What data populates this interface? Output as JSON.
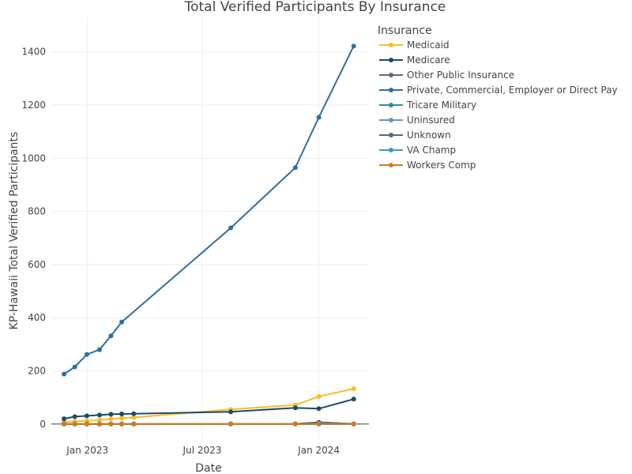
{
  "chart_data": {
    "type": "line",
    "title": "Total Verified Participants By Insurance",
    "xlabel": "Date",
    "ylabel": "KP-Hawaii Total Verified Participants",
    "x_ticks": [
      {
        "date": "2023-01-01",
        "label": "Jan 2023"
      },
      {
        "date": "2023-07-01",
        "label": "Jul 2023"
      },
      {
        "date": "2024-01-01",
        "label": "Jan 2024"
      }
    ],
    "y_ticks": [
      0,
      200,
      400,
      600,
      800,
      1000,
      1200,
      1400
    ],
    "xlim": [
      "2022-11-05",
      "2024-03-20"
    ],
    "ylim": [
      -60,
      1530
    ],
    "grid": true,
    "legend": {
      "title": "Insurance",
      "placement": "right"
    },
    "series": [
      {
        "name": "Medicaid",
        "color": "#fbbc22",
        "points": [
          {
            "date": "2022-11-25",
            "value": 8
          },
          {
            "date": "2022-12-12",
            "value": 10
          },
          {
            "date": "2022-12-31",
            "value": 12
          },
          {
            "date": "2023-01-20",
            "value": 15
          },
          {
            "date": "2023-02-07",
            "value": 20
          },
          {
            "date": "2023-02-24",
            "value": 22
          },
          {
            "date": "2023-03-15",
            "value": 25
          },
          {
            "date": "2023-08-15",
            "value": 55
          },
          {
            "date": "2023-11-25",
            "value": 72
          },
          {
            "date": "2024-01-01",
            "value": 104
          },
          {
            "date": "2024-02-25",
            "value": 133
          }
        ]
      },
      {
        "name": "Medicare",
        "color": "#1b4a6b",
        "points": [
          {
            "date": "2022-11-25",
            "value": 20
          },
          {
            "date": "2022-12-12",
            "value": 28
          },
          {
            "date": "2022-12-31",
            "value": 31
          },
          {
            "date": "2023-01-20",
            "value": 34
          },
          {
            "date": "2023-02-07",
            "value": 37
          },
          {
            "date": "2023-02-24",
            "value": 38
          },
          {
            "date": "2023-03-15",
            "value": 39
          },
          {
            "date": "2023-08-15",
            "value": 46
          },
          {
            "date": "2023-11-25",
            "value": 61
          },
          {
            "date": "2024-01-01",
            "value": 58
          },
          {
            "date": "2024-02-25",
            "value": 94
          }
        ]
      },
      {
        "name": "Other Public Insurance",
        "color": "#606a74",
        "points": [
          {
            "date": "2022-11-25",
            "value": 1
          },
          {
            "date": "2022-12-12",
            "value": 1
          },
          {
            "date": "2022-12-31",
            "value": 1
          },
          {
            "date": "2023-01-20",
            "value": 1
          },
          {
            "date": "2023-02-07",
            "value": 1
          },
          {
            "date": "2023-02-24",
            "value": 1
          },
          {
            "date": "2023-03-15",
            "value": 1
          },
          {
            "date": "2023-08-15",
            "value": 1
          },
          {
            "date": "2023-11-25",
            "value": 1
          },
          {
            "date": "2024-01-01",
            "value": 1
          },
          {
            "date": "2024-02-25",
            "value": 1
          }
        ]
      },
      {
        "name": "Private, Commercial, Employer or Direct Pay",
        "color": "#2d6f9e",
        "points": [
          {
            "date": "2022-11-25",
            "value": 188
          },
          {
            "date": "2022-12-12",
            "value": 215
          },
          {
            "date": "2022-12-31",
            "value": 262
          },
          {
            "date": "2023-01-20",
            "value": 280
          },
          {
            "date": "2023-02-07",
            "value": 332
          },
          {
            "date": "2023-02-24",
            "value": 384
          },
          {
            "date": "2023-08-15",
            "value": 738
          },
          {
            "date": "2023-11-25",
            "value": 965
          },
          {
            "date": "2024-01-01",
            "value": 1154
          },
          {
            "date": "2024-02-25",
            "value": 1422
          }
        ]
      },
      {
        "name": "Tricare Military",
        "color": "#2e8ba3",
        "points": [
          {
            "date": "2022-11-25",
            "value": 0
          },
          {
            "date": "2022-12-12",
            "value": 0
          },
          {
            "date": "2022-12-31",
            "value": 0
          },
          {
            "date": "2023-01-20",
            "value": 0
          },
          {
            "date": "2023-02-07",
            "value": 0
          },
          {
            "date": "2023-02-24",
            "value": 0
          },
          {
            "date": "2023-03-15",
            "value": 0
          },
          {
            "date": "2023-08-15",
            "value": 0
          },
          {
            "date": "2023-11-25",
            "value": 0
          },
          {
            "date": "2024-01-01",
            "value": 0
          },
          {
            "date": "2024-02-25",
            "value": 0
          }
        ]
      },
      {
        "name": "Uninsured",
        "color": "#6b93bd",
        "points": [
          {
            "date": "2022-11-25",
            "value": 1
          },
          {
            "date": "2022-12-12",
            "value": 1
          },
          {
            "date": "2022-12-31",
            "value": 1
          },
          {
            "date": "2023-01-20",
            "value": 1
          },
          {
            "date": "2023-02-07",
            "value": 1
          },
          {
            "date": "2023-02-24",
            "value": 1
          },
          {
            "date": "2023-03-15",
            "value": 1
          },
          {
            "date": "2023-08-15",
            "value": 1
          },
          {
            "date": "2023-11-25",
            "value": 1
          },
          {
            "date": "2024-01-01",
            "value": 1
          },
          {
            "date": "2024-02-25",
            "value": 1
          }
        ]
      },
      {
        "name": "Unknown",
        "color": "#4d6a86",
        "points": [
          {
            "date": "2022-11-25",
            "value": 0
          },
          {
            "date": "2022-12-12",
            "value": 0
          },
          {
            "date": "2022-12-31",
            "value": 0
          },
          {
            "date": "2023-01-20",
            "value": 0
          },
          {
            "date": "2023-02-07",
            "value": 0
          },
          {
            "date": "2023-02-24",
            "value": 0
          },
          {
            "date": "2023-03-15",
            "value": 0
          },
          {
            "date": "2023-08-15",
            "value": 1
          },
          {
            "date": "2023-11-25",
            "value": 1
          },
          {
            "date": "2024-01-01",
            "value": 7
          },
          {
            "date": "2024-02-25",
            "value": 1
          }
        ]
      },
      {
        "name": "VA Champ",
        "color": "#3a9bbf",
        "points": [
          {
            "date": "2022-11-25",
            "value": 0
          },
          {
            "date": "2022-12-12",
            "value": 0
          },
          {
            "date": "2022-12-31",
            "value": 0
          },
          {
            "date": "2023-01-20",
            "value": 0
          },
          {
            "date": "2023-02-07",
            "value": 0
          },
          {
            "date": "2023-02-24",
            "value": 0
          },
          {
            "date": "2023-03-15",
            "value": 0
          },
          {
            "date": "2023-08-15",
            "value": 0
          },
          {
            "date": "2023-11-25",
            "value": 0
          },
          {
            "date": "2024-01-01",
            "value": 0
          },
          {
            "date": "2024-02-25",
            "value": 0
          }
        ]
      },
      {
        "name": "Workers Comp",
        "color": "#d27b1c",
        "points": [
          {
            "date": "2022-11-25",
            "value": 0
          },
          {
            "date": "2022-12-12",
            "value": 0
          },
          {
            "date": "2022-12-31",
            "value": 0
          },
          {
            "date": "2023-01-20",
            "value": 0
          },
          {
            "date": "2023-02-07",
            "value": 0
          },
          {
            "date": "2023-02-24",
            "value": 0
          },
          {
            "date": "2023-03-15",
            "value": 0
          },
          {
            "date": "2023-08-15",
            "value": 0
          },
          {
            "date": "2023-11-25",
            "value": 0
          },
          {
            "date": "2024-01-01",
            "value": 0
          },
          {
            "date": "2024-02-25",
            "value": 0
          }
        ]
      }
    ]
  }
}
